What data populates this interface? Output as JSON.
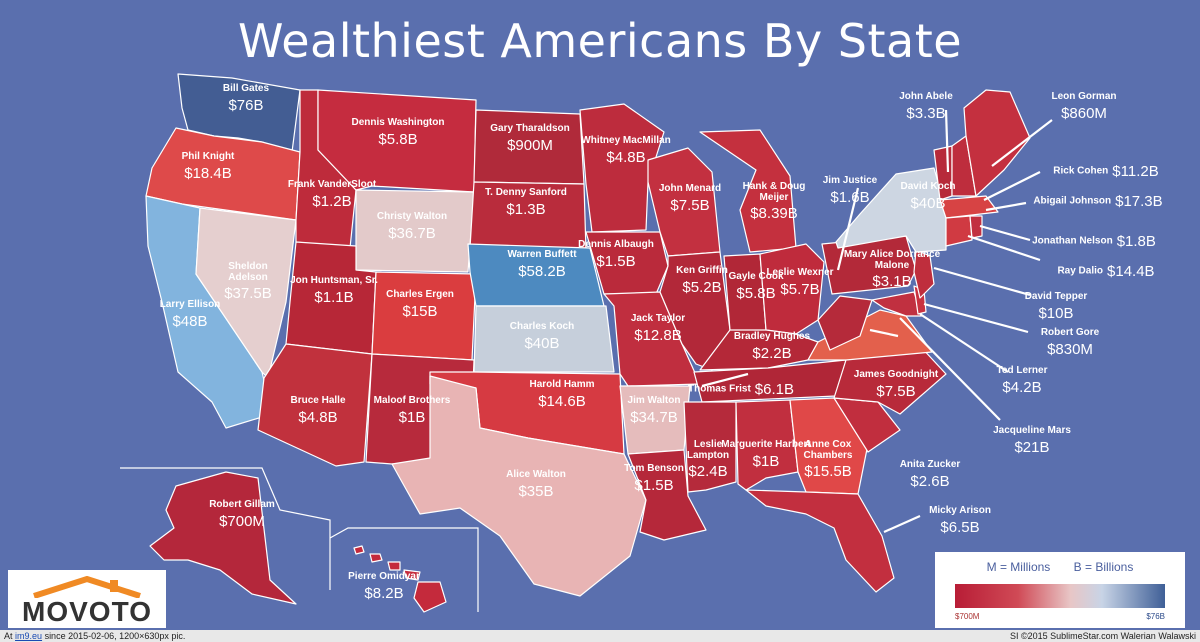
{
  "title": "Wealthiest Americans By State",
  "colors": {
    "background": "#5a6fae",
    "high": "#3f5f97",
    "low": "#b81d36"
  },
  "states": [
    {
      "key": "wa",
      "name": "Bill Gates",
      "worth": "$76B"
    },
    {
      "key": "or",
      "name": "Phil Knight",
      "worth": "$18.4B"
    },
    {
      "key": "ca",
      "name": "Larry Ellison",
      "worth": "$48B"
    },
    {
      "key": "nv",
      "name": "Sheldon Adelson",
      "worth": "$37.5B"
    },
    {
      "key": "id",
      "name": "Frank VanderSloot",
      "worth": "$1.2B"
    },
    {
      "key": "mt",
      "name": "Dennis Washington",
      "worth": "$5.8B"
    },
    {
      "key": "wy",
      "name": "Christy Walton",
      "worth": "$36.7B"
    },
    {
      "key": "ut",
      "name": "Jon Huntsman, Sr.",
      "worth": "$1.1B"
    },
    {
      "key": "az",
      "name": "Bruce Halle",
      "worth": "$4.8B"
    },
    {
      "key": "co",
      "name": "Charles Ergen",
      "worth": "$15B"
    },
    {
      "key": "nm",
      "name": "Maloof Brothers",
      "worth": "$1B"
    },
    {
      "key": "nd",
      "name": "Gary Tharaldson",
      "worth": "$900M"
    },
    {
      "key": "sd",
      "name": "T. Denny Sanford",
      "worth": "$1.3B"
    },
    {
      "key": "ne",
      "name": "Warren Buffett",
      "worth": "$58.2B"
    },
    {
      "key": "ks",
      "name": "Charles Koch",
      "worth": "$40B"
    },
    {
      "key": "ok",
      "name": "Harold Hamm",
      "worth": "$14.6B"
    },
    {
      "key": "tx",
      "name": "Alice Walton",
      "worth": "$35B"
    },
    {
      "key": "mn",
      "name": "Whitney MacMillan",
      "worth": "$4.8B"
    },
    {
      "key": "ia",
      "name": "Dennis Albaugh",
      "worth": "$1.5B"
    },
    {
      "key": "mo",
      "name": "Jack Taylor",
      "worth": "$12.8B"
    },
    {
      "key": "ar",
      "name": "Jim Walton",
      "worth": "$34.7B"
    },
    {
      "key": "la",
      "name": "Tom Benson",
      "worth": "$1.5B"
    },
    {
      "key": "wi",
      "name": "John Menard",
      "worth": "$7.5B"
    },
    {
      "key": "il",
      "name": "Ken Griffin",
      "worth": "$5.2B"
    },
    {
      "key": "mi",
      "name": "Hank & Doug Meijer",
      "worth": "$8.39B"
    },
    {
      "key": "in",
      "name": "Gayle Cook",
      "worth": "$5.8B"
    },
    {
      "key": "oh",
      "name": "Leslie Wexner",
      "worth": "$5.7B"
    },
    {
      "key": "ky",
      "name": "Bradley Hughes",
      "worth": "$2.2B"
    },
    {
      "key": "tn",
      "name": "Thomas Frist",
      "worth": "$6.1B"
    },
    {
      "key": "ms",
      "name": "Leslie Lampton",
      "worth": "$2.4B"
    },
    {
      "key": "al",
      "name": "Marguerite Harbert",
      "worth": "$1B"
    },
    {
      "key": "ga",
      "name": "Anne Cox Chambers",
      "worth": "$15.5B"
    },
    {
      "key": "ak",
      "name": "Robert Gillam",
      "worth": "$700M"
    },
    {
      "key": "hi",
      "name": "Pierre Omidyar",
      "worth": "$8.2B"
    },
    {
      "key": "me",
      "name": "Leon Gorman",
      "worth": "$860M"
    },
    {
      "key": "vt",
      "name": "John Abele",
      "worth": "$3.3B"
    },
    {
      "key": "ny",
      "name": "David Koch",
      "worth": "$40B"
    },
    {
      "key": "wv",
      "name": "Jim Justice",
      "worth": "$1.6B"
    },
    {
      "key": "pa",
      "name": "Mary Alice Dorrance Malone",
      "worth": "$3.1B"
    },
    {
      "key": "nh",
      "name": "Rick Cohen",
      "worth": "$11.2B"
    },
    {
      "key": "ma",
      "name": "Abigail Johnson",
      "worth": "$17.3B"
    },
    {
      "key": "ri",
      "name": "Jonathan Nelson",
      "worth": "$1.8B"
    },
    {
      "key": "ct",
      "name": "Ray Dalio",
      "worth": "$14.4B"
    },
    {
      "key": "nj",
      "name": "David Tepper",
      "worth": "$10B"
    },
    {
      "key": "de",
      "name": "Robert Gore",
      "worth": "$830M"
    },
    {
      "key": "md",
      "name": "Ted Lerner",
      "worth": "$4.2B"
    },
    {
      "key": "va",
      "name": "Jacqueline Mars",
      "worth": "$21B"
    },
    {
      "key": "nc",
      "name": "James Goodnight",
      "worth": "$7.5B"
    },
    {
      "key": "sc",
      "name": "Anita Zucker",
      "worth": "$2.6B"
    },
    {
      "key": "fl",
      "name": "Micky Arison",
      "worth": "$6.5B"
    }
  ],
  "legend": {
    "millions": "M = Millions",
    "billions": "B = Billions",
    "low": "$700M",
    "high": "$76B"
  },
  "logo": "MOVOTO",
  "footer": {
    "prefix": "At",
    "site": "im9.eu",
    "since": "since 2015-02-06, 1200×630px pic.",
    "right": "SI ©2015 SublimeStar.com Walerian Walawski"
  }
}
